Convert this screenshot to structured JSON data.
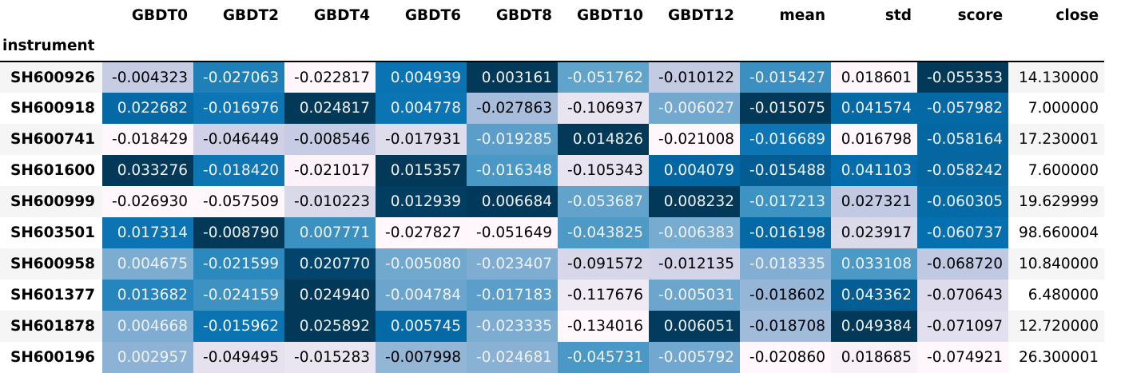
{
  "table": {
    "index_label": "instrument",
    "columns": [
      "GBDT0",
      "GBDT2",
      "GBDT4",
      "GBDT6",
      "GBDT8",
      "GBDT10",
      "GBDT12",
      "mean",
      "std",
      "score",
      "close"
    ],
    "rows": [
      {
        "instrument": "SH600926",
        "values": [
          "-0.004323",
          "-0.027063",
          "-0.022817",
          "0.004939",
          "0.003161",
          "-0.051762",
          "-0.010122",
          "-0.015427",
          "0.018601",
          "-0.055353",
          "14.130000"
        ],
        "colors": [
          "#c6cce3",
          "#1f80b8",
          "#fef6fa",
          "#0a73b2",
          "#023858",
          "#60a3cb",
          "#c2cbe2",
          "#3b8fc1",
          "#fef6fa",
          "#023858"
        ]
      },
      {
        "instrument": "SH600918",
        "values": [
          "0.022682",
          "-0.016976",
          "0.024817",
          "0.004778",
          "-0.027863",
          "-0.106937",
          "-0.006027",
          "-0.015075",
          "0.041574",
          "-0.057982",
          "7.000000"
        ],
        "colors": [
          "#0569a5",
          "#0d75b3",
          "#023858",
          "#0b74b2",
          "#a6bddb",
          "#e8e4f0",
          "#73a9cf",
          "#023858",
          "#0569a5",
          "#0569a5"
        ]
      },
      {
        "instrument": "SH600741",
        "values": [
          "-0.018429",
          "-0.046449",
          "-0.008546",
          "-0.017931",
          "-0.019285",
          "0.014826",
          "-0.021008",
          "-0.016689",
          "0.016798",
          "-0.058164",
          "17.230001"
        ],
        "colors": [
          "#fff7fb",
          "#d0d1e6",
          "#c6cce3",
          "#dfddec",
          "#5a9ec9",
          "#023858",
          "#fff7fb",
          "#0d75b3",
          "#fff7fb",
          "#0567a1"
        ]
      },
      {
        "instrument": "SH601600",
        "values": [
          "0.033276",
          "-0.018420",
          "-0.021017",
          "0.015357",
          "-0.016348",
          "-0.105343",
          "0.004079",
          "-0.015488",
          "0.041103",
          "-0.058242",
          "7.600000"
        ],
        "colors": [
          "#023858",
          "#0e76b3",
          "#fbf3f9",
          "#023858",
          "#4a98c5",
          "#e7e3f0",
          "#0567a1",
          "#045d92",
          "#056dab",
          "#0566a0"
        ]
      },
      {
        "instrument": "SH600999",
        "values": [
          "-0.026930",
          "-0.057509",
          "-0.010223",
          "0.012939",
          "0.006684",
          "-0.053687",
          "0.008232",
          "-0.017213",
          "0.027321",
          "-0.060305",
          "19.629999"
        ],
        "colors": [
          "#fff7fb",
          "#fff7fb",
          "#dad9ea",
          "#023e62",
          "#02395a",
          "#62a2cb",
          "#023858",
          "#3d93c2",
          "#c1cae2",
          "#056ba7"
        ]
      },
      {
        "instrument": "SH603501",
        "values": [
          "0.017314",
          "-0.008790",
          "0.007771",
          "-0.027827",
          "-0.051649",
          "-0.043825",
          "-0.006383",
          "-0.016198",
          "0.023917",
          "-0.060737",
          "98.660004"
        ],
        "colors": [
          "#0c74b2",
          "#023858",
          "#3b92c1",
          "#fff7fb",
          "#fff7fb",
          "#4e9ac6",
          "#78abd0",
          "#0569a5",
          "#dbdaeb",
          "#0570b0"
        ]
      },
      {
        "instrument": "SH600958",
        "values": [
          "0.004675",
          "-0.021599",
          "0.020770",
          "-0.005080",
          "-0.023407",
          "-0.091572",
          "-0.012135",
          "-0.018335",
          "0.033108",
          "-0.068720",
          "10.840000"
        ],
        "colors": [
          "#7dacd1",
          "#2c89bd",
          "#02446c",
          "#71a8ce",
          "#7eadd1",
          "#d8d7e9",
          "#d4d4e8",
          "#81aed2",
          "#4c99c5",
          "#c0c9e2"
        ]
      },
      {
        "instrument": "SH601377",
        "values": [
          "0.013682",
          "-0.024159",
          "0.024940",
          "-0.004784",
          "-0.017183",
          "-0.117676",
          "-0.005031",
          "-0.018602",
          "0.043362",
          "-0.070643",
          "6.480000"
        ],
        "colors": [
          "#2585bc",
          "#3d92c2",
          "#023858",
          "#6ba5cd",
          "#5a9ec9",
          "#f0eaf4",
          "#6da6cd",
          "#96b6d7",
          "#045e93",
          "#dedcec"
        ]
      },
      {
        "instrument": "SH601878",
        "values": [
          "0.004668",
          "-0.015962",
          "0.025892",
          "0.005745",
          "-0.023335",
          "-0.134016",
          "0.006051",
          "-0.018708",
          "0.049384",
          "-0.071097",
          "12.720000"
        ],
        "colors": [
          "#7eadd1",
          "#0a73b2",
          "#023858",
          "#0569a5",
          "#7dacd1",
          "#fff7fb",
          "#023b5d",
          "#a1bbda",
          "#023858",
          "#e2dfee"
        ]
      },
      {
        "instrument": "SH600196",
        "values": [
          "0.002957",
          "-0.049495",
          "-0.015283",
          "-0.007998",
          "-0.024681",
          "-0.045731",
          "-0.005792",
          "-0.020860",
          "0.018685",
          "-0.074921",
          "26.300001"
        ],
        "colors": [
          "#8cb3d5",
          "#e5e1ef",
          "#eae6f1",
          "#93b5d6",
          "#89b1d4",
          "#4a98c5",
          "#72a8cf",
          "#fff7fb",
          "#f8f1f8",
          "#fff7fb"
        ]
      }
    ]
  }
}
